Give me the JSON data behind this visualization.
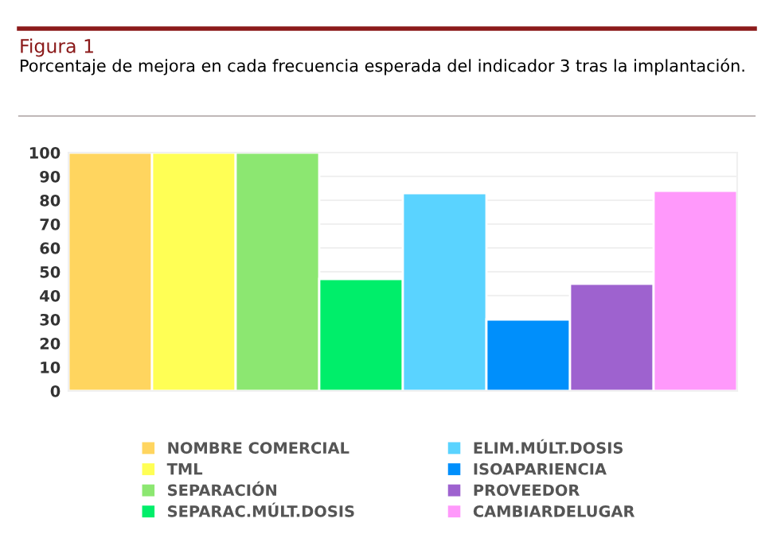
{
  "chart_data": {
    "type": "bar",
    "title": "Figura 1",
    "subtitle": "Porcentaje de mejora en cada frecuencia esperada del indicador 3 tras la implantación.",
    "categories": [
      null,
      null,
      null,
      null,
      null,
      null,
      null,
      null
    ],
    "series": [
      {
        "name": "NOMBRE COMERCIAL",
        "color": "#ffd55f",
        "values": [
          100,
          null,
          null,
          null,
          null,
          null,
          null,
          null
        ]
      },
      {
        "name": "TML",
        "color": "#ffff55",
        "values": [
          null,
          100,
          null,
          null,
          null,
          null,
          null,
          null
        ]
      },
      {
        "name": "SEPARACIÓN",
        "color": "#8ce771",
        "values": [
          null,
          null,
          100,
          null,
          null,
          null,
          null,
          null
        ]
      },
      {
        "name": "SEPARAC.MÚLT.DOSIS",
        "color": "#00ee6a",
        "values": [
          null,
          null,
          null,
          47,
          null,
          null,
          null,
          null
        ]
      },
      {
        "name": "ELIM.MÚLT.DOSIS",
        "color": "#5ad3ff",
        "values": [
          null,
          null,
          null,
          null,
          83,
          null,
          null,
          null
        ]
      },
      {
        "name": "ISOAPARIENCIA",
        "color": "#008ffb",
        "values": [
          null,
          null,
          null,
          null,
          null,
          30,
          null,
          null
        ]
      },
      {
        "name": "PROVEEDOR",
        "color": "#9e62cf",
        "values": [
          null,
          null,
          null,
          null,
          null,
          null,
          45,
          null
        ]
      },
      {
        "name": "CAMBIARDELUGAR",
        "color": "#ff99fb",
        "values": [
          null,
          null,
          null,
          null,
          null,
          null,
          null,
          84
        ]
      }
    ],
    "ylim": [
      0,
      100
    ],
    "yticks": [
      0,
      10,
      20,
      30,
      40,
      50,
      60,
      70,
      80,
      90,
      100
    ],
    "grid": "y",
    "legend": "bottom"
  }
}
